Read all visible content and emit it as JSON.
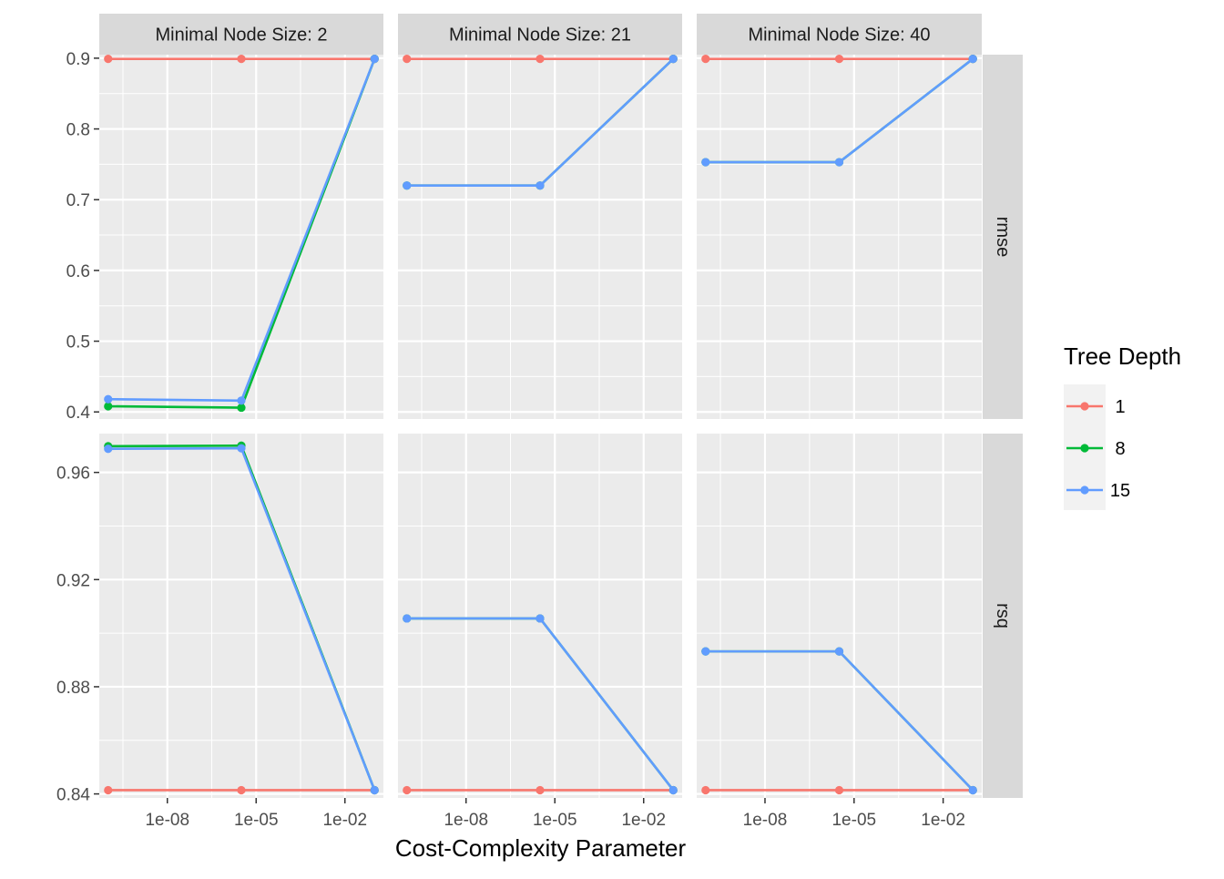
{
  "chart_data": {
    "type": "line",
    "xlabel": "Cost-Complexity Parameter",
    "x_scale": "log10",
    "x_ticks": [
      "1e-08",
      "1e-05",
      "1e-02"
    ],
    "x": [
      1e-10,
      3.162e-06,
      0.1
    ],
    "legend": {
      "title": "Tree Depth",
      "position": "right",
      "entries": [
        {
          "label": "1",
          "color": "#F8766D"
        },
        {
          "label": "8",
          "color": "#00BA38"
        },
        {
          "label": "15",
          "color": "#619CFF"
        }
      ]
    },
    "columns": [
      {
        "strip": "Minimal Node Size: 2"
      },
      {
        "strip": "Minimal Node Size: 21"
      },
      {
        "strip": "Minimal Node Size: 40"
      }
    ],
    "rows": [
      {
        "strip": "rmse",
        "ylim": [
          0.39,
          0.905
        ],
        "y_ticks": [
          0.4,
          0.5,
          0.6,
          0.7,
          0.8,
          0.9
        ],
        "y_tick_labels": [
          "0.4",
          "0.5",
          "0.6",
          "0.7",
          "0.8",
          "0.9"
        ]
      },
      {
        "strip": "rsq",
        "ylim": [
          0.8385,
          0.9745
        ],
        "y_ticks": [
          0.84,
          0.88,
          0.92,
          0.96
        ],
        "y_tick_labels": [
          "0.84",
          "0.88",
          "0.92",
          "0.96"
        ]
      }
    ],
    "panels": [
      {
        "row": 0,
        "col": 0,
        "series": [
          {
            "name": "1",
            "values": [
              0.899,
              0.899,
              0.899
            ]
          },
          {
            "name": "8",
            "values": [
              0.408,
              0.406,
              0.899
            ]
          },
          {
            "name": "15",
            "values": [
              0.418,
              0.416,
              0.899
            ]
          }
        ]
      },
      {
        "row": 0,
        "col": 1,
        "series": [
          {
            "name": "1",
            "values": [
              0.899,
              0.899,
              0.899
            ]
          },
          {
            "name": "8",
            "values": [
              0.72,
              0.72,
              0.899
            ]
          },
          {
            "name": "15",
            "values": [
              0.72,
              0.72,
              0.899
            ]
          }
        ]
      },
      {
        "row": 0,
        "col": 2,
        "series": [
          {
            "name": "1",
            "values": [
              0.899,
              0.899,
              0.899
            ]
          },
          {
            "name": "8",
            "values": [
              0.753,
              0.753,
              0.899
            ]
          },
          {
            "name": "15",
            "values": [
              0.753,
              0.753,
              0.899
            ]
          }
        ]
      },
      {
        "row": 1,
        "col": 0,
        "series": [
          {
            "name": "1",
            "values": [
              0.8414,
              0.8414,
              0.8414
            ]
          },
          {
            "name": "8",
            "values": [
              0.9698,
              0.97,
              0.8414
            ]
          },
          {
            "name": "15",
            "values": [
              0.9688,
              0.969,
              0.8414
            ]
          }
        ]
      },
      {
        "row": 1,
        "col": 1,
        "series": [
          {
            "name": "1",
            "values": [
              0.8414,
              0.8414,
              0.8414
            ]
          },
          {
            "name": "8",
            "values": [
              0.9055,
              0.9055,
              0.8414
            ]
          },
          {
            "name": "15",
            "values": [
              0.9055,
              0.9055,
              0.8414
            ]
          }
        ]
      },
      {
        "row": 1,
        "col": 2,
        "series": [
          {
            "name": "1",
            "values": [
              0.8414,
              0.8414,
              0.8414
            ]
          },
          {
            "name": "8",
            "values": [
              0.8932,
              0.8932,
              0.8414
            ]
          },
          {
            "name": "15",
            "values": [
              0.8932,
              0.8932,
              0.8414
            ]
          }
        ]
      }
    ]
  }
}
